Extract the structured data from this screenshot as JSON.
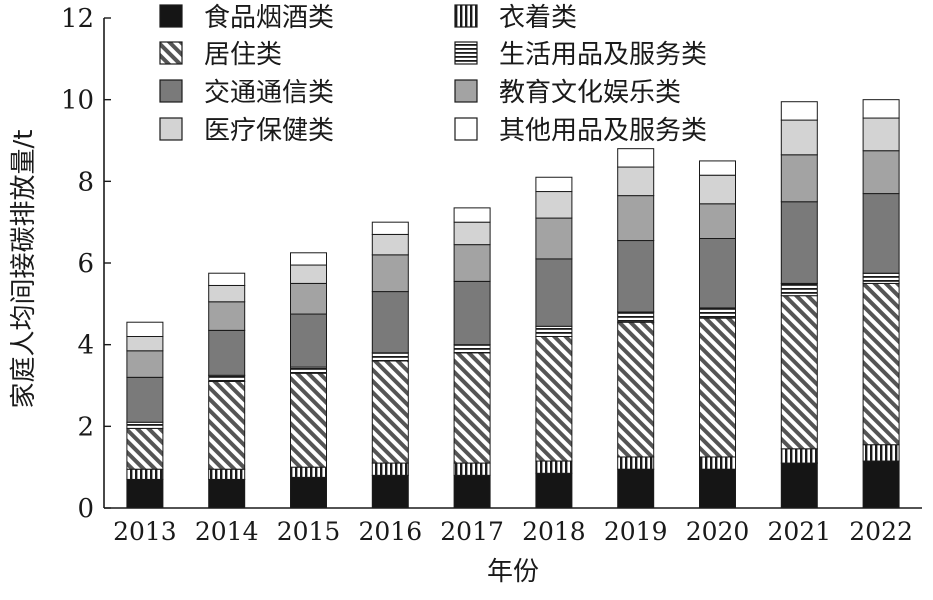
{
  "chart_data": {
    "type": "bar",
    "stacked": true,
    "xlabel": "年份",
    "ylabel": "家庭人均间接碳排放量/t",
    "ylim": [
      0,
      12
    ],
    "yticks": [
      0,
      2,
      4,
      6,
      8,
      10,
      12
    ],
    "grid": false,
    "legend_position": "top",
    "categories": [
      "2013",
      "2014",
      "2015",
      "2016",
      "2017",
      "2018",
      "2019",
      "2020",
      "2021",
      "2022"
    ],
    "series": [
      {
        "name": "食品烟酒类",
        "style": "solid-black",
        "values": [
          0.7,
          0.7,
          0.75,
          0.8,
          0.8,
          0.85,
          0.95,
          0.95,
          1.1,
          1.15
        ]
      },
      {
        "name": "衣着类",
        "style": "vertical-stripes",
        "values": [
          0.25,
          0.25,
          0.25,
          0.3,
          0.3,
          0.3,
          0.3,
          0.3,
          0.35,
          0.4
        ]
      },
      {
        "name": "居住类",
        "style": "diagonal-hatch",
        "values": [
          1.0,
          2.15,
          2.3,
          2.5,
          2.7,
          3.05,
          3.3,
          3.4,
          3.75,
          3.95
        ]
      },
      {
        "name": "生活用品及服务类",
        "style": "horizontal-stripes",
        "values": [
          0.15,
          0.15,
          0.15,
          0.2,
          0.2,
          0.25,
          0.25,
          0.25,
          0.3,
          0.25
        ]
      },
      {
        "name": "交通通信类",
        "style": "dark-gray",
        "values": [
          1.1,
          1.1,
          1.3,
          1.5,
          1.55,
          1.65,
          1.75,
          1.7,
          2.0,
          1.95
        ]
      },
      {
        "name": "教育文化娱乐类",
        "style": "mid-gray",
        "values": [
          0.65,
          0.7,
          0.75,
          0.9,
          0.9,
          1.0,
          1.1,
          0.85,
          1.15,
          1.05
        ]
      },
      {
        "name": "医疗保健类",
        "style": "light-gray",
        "values": [
          0.35,
          0.4,
          0.45,
          0.5,
          0.55,
          0.65,
          0.7,
          0.7,
          0.85,
          0.8
        ]
      },
      {
        "name": "其他用品及服务类",
        "style": "white",
        "values": [
          0.35,
          0.3,
          0.3,
          0.3,
          0.35,
          0.35,
          0.45,
          0.35,
          0.45,
          0.45
        ]
      }
    ]
  }
}
